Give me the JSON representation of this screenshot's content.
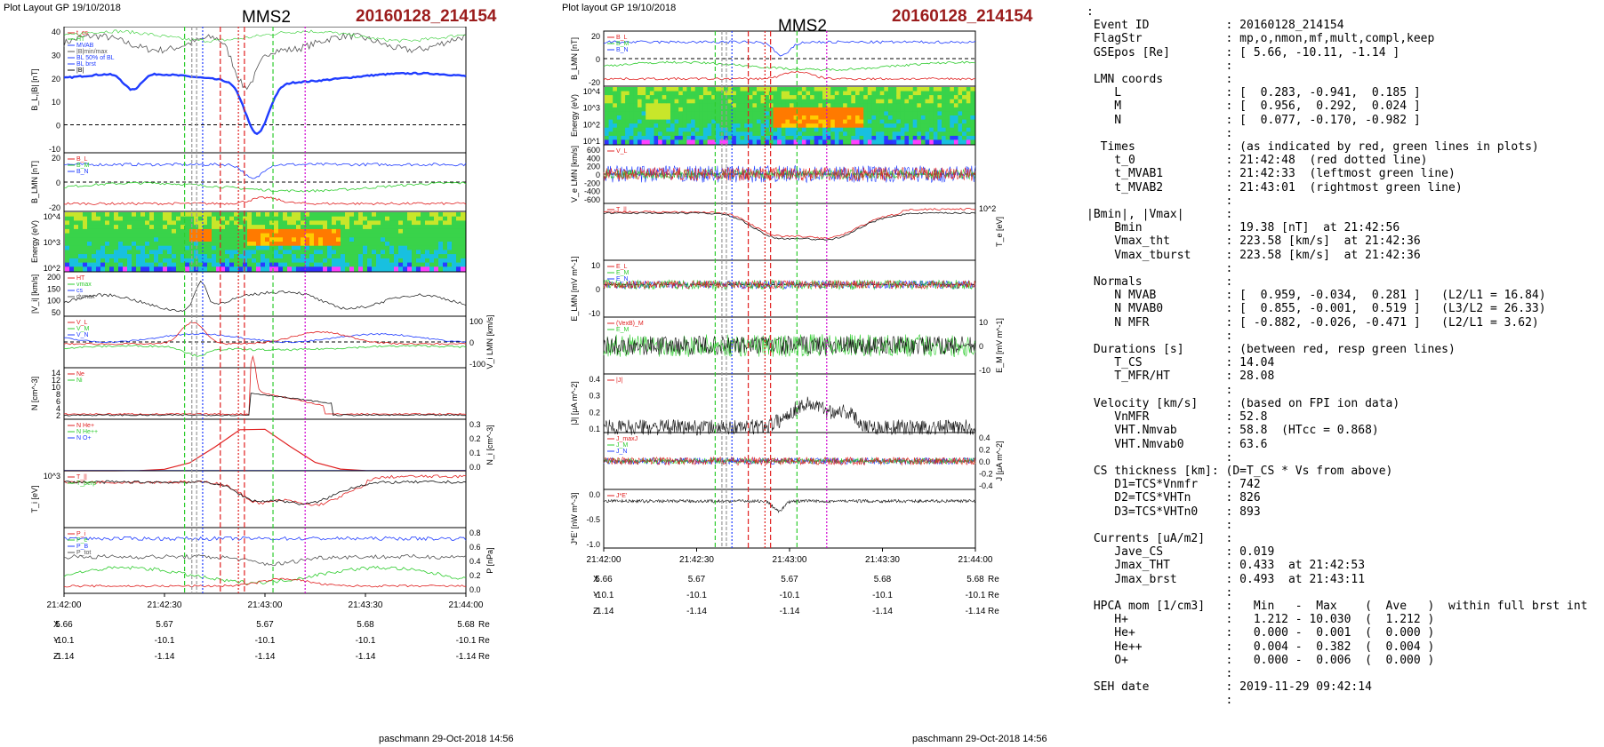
{
  "left": {
    "layout_label": "Plot Layout GP 19/10/2018",
    "spacecraft": "MMS2",
    "event": "20160128_214154",
    "footer": "paschmann 29-Oct-2018 14:56",
    "time_ticks": [
      "21:42:00",
      "21:42:30",
      "21:43:00",
      "21:43:30",
      "21:44:00"
    ],
    "coord_rows": [
      {
        "label": "X",
        "values": [
          "5.66",
          "5.67",
          "5.67",
          "5.68",
          "5.68"
        ],
        "unit": "Re"
      },
      {
        "label": "Y",
        "values": [
          "-10.1",
          "-10.1",
          "-10.1",
          "-10.1",
          "-10.1"
        ],
        "unit": "Re"
      },
      {
        "label": "Z",
        "values": [
          "-1.14",
          "-1.14",
          "-1.14",
          "-1.14",
          "-1.14"
        ],
        "unit": "Re"
      }
    ],
    "panels": [
      {
        "ylabel": "B_L,|B| [nT]",
        "ticks": [
          "40",
          "30",
          "20",
          "10",
          "0",
          "-10"
        ],
        "legend": [
          "t_cs",
          "HT",
          "MVAB",
          "|B|min/max",
          "BL 50% of BL",
          "BL brst",
          "|B|"
        ]
      },
      {
        "ylabel": "B_LMN [nT]",
        "ticks": [
          "20",
          "0",
          "-20"
        ],
        "legend": [
          "B_L",
          "B_M",
          "B_N"
        ]
      },
      {
        "ylabel": "Energy (eV)",
        "ticks": [
          "10^4",
          "10^3",
          "10^2"
        ],
        "legend": []
      },
      {
        "ylabel": "|V_i| [km/s]",
        "ticks": [
          "200",
          "150",
          "100",
          "50"
        ],
        "legend": [
          "HT",
          "vmax",
          "cs",
          "dvmax"
        ]
      },
      {
        "ylabel": "V_i LMN [km/s]",
        "ticks": [
          "100",
          "0",
          "-100"
        ],
        "legend": [
          "V_L",
          "V_M",
          "V_N"
        ]
      },
      {
        "ylabel": "N [cm^-3]",
        "ticks": [
          "14",
          "12",
          "10",
          "8",
          "6",
          "4",
          "2"
        ],
        "legend": [
          "Ne",
          "Ni"
        ]
      },
      {
        "ylabel": "N_i [cm^-3]",
        "ticks": [
          "0.3",
          "0.2",
          "0.1",
          "0.0"
        ],
        "legend": [
          "N He+",
          "N He++",
          "N O+"
        ]
      },
      {
        "ylabel": "T_i [eV]",
        "ticks": [
          "10^3"
        ],
        "legend": [
          "T_||",
          "T_perp"
        ]
      },
      {
        "ylabel": "P [nPa]",
        "ticks": [
          "0.8",
          "0.6",
          "0.4",
          "0.2",
          "0.0"
        ],
        "legend": [
          "P_i",
          "P_e",
          "P_B",
          "P_tot"
        ]
      }
    ]
  },
  "middle": {
    "layout_label": "Plot layout GP 19/10/2018",
    "spacecraft": "MMS2",
    "event": "20160128_214154",
    "footer": "paschmann 29-Oct-2018 14:56",
    "time_ticks": [
      "21:42:00",
      "21:42:30",
      "21:43:00",
      "21:43:30",
      "21:44:00"
    ],
    "coord_rows": [
      {
        "label": "X",
        "values": [
          "5.66",
          "5.67",
          "5.67",
          "5.68",
          "5.68"
        ],
        "unit": "Re"
      },
      {
        "label": "Y",
        "values": [
          "-10.1",
          "-10.1",
          "-10.1",
          "-10.1",
          "-10.1"
        ],
        "unit": "Re"
      },
      {
        "label": "Z",
        "values": [
          "-1.14",
          "-1.14",
          "-1.14",
          "-1.14",
          "-1.14"
        ],
        "unit": "Re"
      }
    ],
    "panels": [
      {
        "ylabel": "B_LMN [nT]",
        "ticks": [
          "20",
          "0",
          "-20"
        ],
        "legend": [
          "B_L",
          "B_M",
          "B_N"
        ]
      },
      {
        "ylabel": "Energy (eV)",
        "ticks": [
          "10^4",
          "10^3",
          "10^2",
          "10^1"
        ],
        "legend": []
      },
      {
        "ylabel": "V_e LMN [km/s]",
        "ticks": [
          "600",
          "400",
          "200",
          "0",
          "-200",
          "-400",
          "-600"
        ],
        "legend": [
          "V_L"
        ]
      },
      {
        "ylabel": "T_e [eV]",
        "ticks": [
          "10^2"
        ],
        "legend": [
          "T_||"
        ]
      },
      {
        "ylabel": "E_LMN [mV m^-1]",
        "ticks": [
          "10",
          "0",
          "-10"
        ],
        "legend": [
          "E_L",
          "E_M",
          "E_N"
        ]
      },
      {
        "ylabel": "E_M [mV m^-1]",
        "ticks": [
          "10",
          "0",
          "-10"
        ],
        "legend": [
          "(VexB)_M",
          "E_M"
        ]
      },
      {
        "ylabel": "|J| [μA m^-2]",
        "ticks": [
          "0.4",
          "0.3",
          "0.2",
          "0.1"
        ],
        "legend": [
          "|J|"
        ]
      },
      {
        "ylabel": "J [μA m^-2]",
        "ticks": [
          "0.4",
          "0.2",
          "0.0",
          "-0.2",
          "-0.4"
        ],
        "legend": [
          "J_maxJ",
          "J_M",
          "J_N"
        ]
      },
      {
        "ylabel": "J*E' [nW m^-3]",
        "ticks": [
          "0.0",
          "-0.5",
          "-1.0"
        ],
        "legend": [
          "J*E'"
        ]
      }
    ]
  },
  "info_text": [
    ":",
    " Event ID           : 20160128_214154",
    " FlagStr            : mp,o,nmon,mf,mult,compl,keep",
    " GSEpos [Re]        : [ 5.66, -10.11, -1.14 ]",
    "                    :",
    " LMN coords         :",
    "    L               : [  0.283, -0.941,  0.185 ]",
    "    M               : [  0.956,  0.292,  0.024 ]",
    "    N               : [  0.077, -0.170, -0.982 ]",
    "                    :",
    "  Times             : (as indicated by red, green lines in plots)",
    "    t_0             : 21:42:48  (red dotted line)",
    "    t_MVAB1         : 21:42:33  (leftmost green line)",
    "    t_MVAB2         : 21:43:01  (rightmost green line)",
    "                    :",
    "|Bmin|, |Vmax|      :",
    "    Bmin            : 19.38 [nT]  at 21:42:56",
    "    Vmax_tht        : 223.58 [km/s]  at 21:42:36",
    "    Vmax_tburst     : 223.58 [km/s]  at 21:42:36",
    "                    :",
    " Normals            :",
    "    N MVAB          : [  0.959, -0.034,  0.281 ]   (L2/L1 = 16.84)",
    "    N MVAB0         : [  0.855, -0.001,  0.519 ]   (L3/L2 = 26.33)",
    "    N MFR           : [ -0.882, -0.026, -0.471 ]   (L2/L1 = 3.62)",
    "                    :",
    " Durations [s]      : (between red, resp green lines)",
    "    T_CS            : 14.04",
    "    T_MFR/HT        : 28.08",
    "                    :",
    " Velocity [km/s]    : (based on FPI ion data)",
    "    VnMFR           : 52.8",
    "    VHT.Nmvab       : 58.8  (HTcc = 0.868)",
    "    VHT.Nmvab0      : 63.6",
    "                    :",
    " CS thickness [km]: (D=T_CS * Vs from above)",
    "    D1=TCS*Vnmfr    : 742",
    "    D2=TCS*VHTn     : 826",
    "    D3=TCS*VHTn0    : 893",
    "                    :",
    " Currents [uA/m2]   :",
    "    Jave_CS         : 0.019",
    "    Jmax_THT        : 0.433  at 21:42:53",
    "    Jmax_brst       : 0.493  at 21:43:11",
    "                    :",
    " HPCA mom [1/cm3]   :   Min   -  Max    (  Ave   )  within full brst int",
    "    H+              :   1.212 - 10.030  (  1.212 )",
    "    He+             :   0.000 -  0.001  (  0.000 )",
    "    He++            :   0.004 -  0.382  (  0.004 )",
    "    O+              :   0.000 -  0.006  (  0.000 )",
    "                    :",
    " SEH date           : 2019-11-29 09:42:14",
    "                    :"
  ],
  "chart_data": [
    {
      "type": "line",
      "title": "MMS2",
      "subtitle": "20160128_214154",
      "x_ticks": [
        "21:42:00",
        "21:42:30",
        "21:43:00",
        "21:43:30",
        "21:44:00"
      ],
      "panels": [
        "B_L,|B| [nT]",
        "B_LMN [nT]",
        "Energy (eV)",
        "|V_i| [km/s]",
        "V_i LMN [km/s]",
        "N [cm^-3]",
        "N_i [cm^-3]",
        "T_i [eV]",
        "P [nPa]"
      ],
      "markers": {
        "red_dotted": "21:42:48",
        "green_left": "21:42:33",
        "green_right": "21:43:01"
      }
    },
    {
      "type": "line",
      "title": "MMS2",
      "subtitle": "20160128_214154",
      "x_ticks": [
        "21:42:00",
        "21:42:30",
        "21:43:00",
        "21:43:30",
        "21:44:00"
      ],
      "panels": [
        "B_LMN [nT]",
        "Energy (eV)",
        "V_e LMN [km/s]",
        "T_e [eV]",
        "E_LMN [mV m^-1]",
        "E_M [mV m^-1]",
        "|J| [μA m^-2]",
        "J [μA m^-2]",
        "J*E' [nW m^-3]"
      ]
    }
  ],
  "colors": {
    "event": "#9b1c1c",
    "blue": "#1f3cff",
    "green": "#2ecc2e",
    "red": "#e02020",
    "black": "#111111",
    "magenta": "#d000d0"
  }
}
